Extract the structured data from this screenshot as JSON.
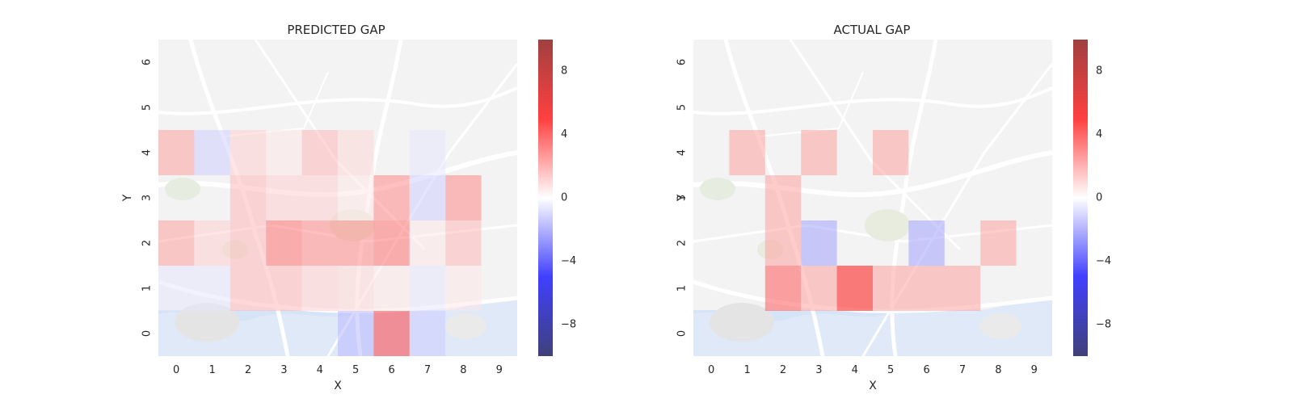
{
  "chart_data": [
    {
      "type": "heatmap",
      "title": "PREDICTED GAP",
      "xlabel": "X",
      "ylabel": "Y",
      "x_ticks": [
        "0",
        "1",
        "2",
        "3",
        "4",
        "5",
        "6",
        "7",
        "8",
        "9"
      ],
      "y_ticks": [
        "0",
        "1",
        "2",
        "3",
        "4",
        "5",
        "6"
      ],
      "xlim": [
        -0.5,
        9.5
      ],
      "ylim": [
        -0.5,
        6.5
      ],
      "colormap": "seismic",
      "vlim": [
        -10,
        10
      ],
      "colorbar_ticks": [
        8,
        4,
        0,
        -4,
        -8
      ],
      "colorbar_tick_labels": [
        "8",
        "4",
        "0",
        "−4",
        "−8"
      ],
      "grid": false,
      "cells": [
        {
          "x": 0,
          "y": 1,
          "value": -0.5
        },
        {
          "x": 1,
          "y": 1,
          "value": -0.5
        },
        {
          "x": 2,
          "y": 1,
          "value": 1.5
        },
        {
          "x": 3,
          "y": 1,
          "value": 1.5
        },
        {
          "x": 4,
          "y": 1,
          "value": 1.0
        },
        {
          "x": 5,
          "y": 1,
          "value": 0.8
        },
        {
          "x": 6,
          "y": 1,
          "value": 0.5
        },
        {
          "x": 7,
          "y": 1,
          "value": -0.5
        },
        {
          "x": 8,
          "y": 1,
          "value": 0.5
        },
        {
          "x": 0,
          "y": 2,
          "value": 2.0
        },
        {
          "x": 1,
          "y": 2,
          "value": 1.0
        },
        {
          "x": 2,
          "y": 2,
          "value": 1.5
        },
        {
          "x": 3,
          "y": 2,
          "value": 3.0
        },
        {
          "x": 4,
          "y": 2,
          "value": 2.5
        },
        {
          "x": 5,
          "y": 2,
          "value": 2.5
        },
        {
          "x": 6,
          "y": 2,
          "value": 3.0
        },
        {
          "x": 7,
          "y": 2,
          "value": 0.5
        },
        {
          "x": 8,
          "y": 2,
          "value": 1.5
        },
        {
          "x": 2,
          "y": 3,
          "value": 1.5
        },
        {
          "x": 3,
          "y": 3,
          "value": 1.0
        },
        {
          "x": 4,
          "y": 3,
          "value": 1.0
        },
        {
          "x": 5,
          "y": 3,
          "value": 0.5
        },
        {
          "x": 6,
          "y": 3,
          "value": 2.5
        },
        {
          "x": 7,
          "y": 3,
          "value": -1.0
        },
        {
          "x": 8,
          "y": 3,
          "value": 2.5
        },
        {
          "x": 0,
          "y": 4,
          "value": 2.0
        },
        {
          "x": 1,
          "y": 4,
          "value": -1.0
        },
        {
          "x": 2,
          "y": 4,
          "value": 1.0
        },
        {
          "x": 3,
          "y": 4,
          "value": 0.5
        },
        {
          "x": 4,
          "y": 4,
          "value": 1.5
        },
        {
          "x": 5,
          "y": 4,
          "value": 0.8
        },
        {
          "x": 7,
          "y": 4,
          "value": -0.5
        },
        {
          "x": 5,
          "y": 0,
          "value": -1.5
        },
        {
          "x": 6,
          "y": 0,
          "value": 4.0
        },
        {
          "x": 7,
          "y": 0,
          "value": -1.0
        }
      ]
    },
    {
      "type": "heatmap",
      "title": "ACTUAL GAP",
      "xlabel": "X",
      "ylabel": "Y",
      "x_ticks": [
        "0",
        "1",
        "2",
        "3",
        "4",
        "5",
        "6",
        "7",
        "8",
        "9"
      ],
      "y_ticks": [
        "0",
        "1",
        "2",
        "3",
        "4",
        "5",
        "6"
      ],
      "xlim": [
        -0.5,
        9.5
      ],
      "ylim": [
        -0.5,
        6.5
      ],
      "colormap": "seismic",
      "vlim": [
        -10,
        10
      ],
      "colorbar_ticks": [
        8,
        4,
        0,
        -4,
        -8
      ],
      "colorbar_tick_labels": [
        "8",
        "4",
        "0",
        "−4",
        "−8"
      ],
      "grid": false,
      "cells": [
        {
          "x": 1,
          "y": 4,
          "value": 2.0
        },
        {
          "x": 3,
          "y": 4,
          "value": 2.0
        },
        {
          "x": 5,
          "y": 4,
          "value": 2.0
        },
        {
          "x": 2,
          "y": 3,
          "value": 2.0
        },
        {
          "x": 2,
          "y": 2,
          "value": 2.0
        },
        {
          "x": 3,
          "y": 2,
          "value": -2.0
        },
        {
          "x": 6,
          "y": 2,
          "value": -2.0
        },
        {
          "x": 8,
          "y": 2,
          "value": 2.0
        },
        {
          "x": 2,
          "y": 1,
          "value": 3.5
        },
        {
          "x": 3,
          "y": 1,
          "value": 2.0
        },
        {
          "x": 4,
          "y": 1,
          "value": 5.0
        },
        {
          "x": 5,
          "y": 1,
          "value": 2.0
        },
        {
          "x": 6,
          "y": 1,
          "value": 2.0
        },
        {
          "x": 7,
          "y": 1,
          "value": 2.0
        }
      ]
    }
  ]
}
